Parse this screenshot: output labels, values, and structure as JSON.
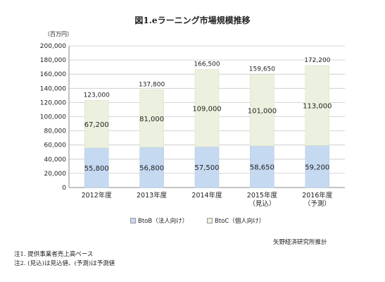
{
  "chart_data": {
    "type": "bar",
    "stacked": true,
    "title": "図1.eラーニング市場規模推移",
    "ylabel": "（百万円）",
    "ylim": [
      0,
      200000
    ],
    "yticks": [
      "0",
      "20,000",
      "40,000",
      "60,000",
      "80,000",
      "100,000",
      "120,000",
      "140,000",
      "160,000",
      "180,000",
      "200,000"
    ],
    "grid": true,
    "legend_position": "bottom",
    "categories": [
      {
        "line1": "2012年度",
        "line2": ""
      },
      {
        "line1": "2013年度",
        "line2": ""
      },
      {
        "line1": "2014年度",
        "line2": ""
      },
      {
        "line1": "2015年度",
        "line2": "（見込）"
      },
      {
        "line1": "2016年度",
        "line2": "（予測）"
      }
    ],
    "series": [
      {
        "name": "BtoB（法人向け）",
        "color": "#c5d9f1",
        "values": [
          55800,
          56800,
          57500,
          58650,
          59200
        ],
        "labels": [
          "55,800",
          "56,800",
          "57,500",
          "58,650",
          "59,200"
        ]
      },
      {
        "name": "BtoC（個人向け）",
        "color": "#ebf1de",
        "values": [
          67200,
          81000,
          109000,
          101000,
          113000
        ],
        "labels": [
          "67,200",
          "81,000",
          "109,000",
          "101,000",
          "113,000"
        ]
      }
    ],
    "totals": [
      123000,
      137800,
      166500,
      159650,
      172200
    ],
    "total_labels": [
      "123,000",
      "137,800",
      "166,500",
      "159,650",
      "172,200"
    ]
  },
  "source": "矢野経済研究所推計",
  "notes": [
    "注1. 提供事業者売上高ベース",
    "注2. (見込)は見込値、(予測)は予測値"
  ]
}
